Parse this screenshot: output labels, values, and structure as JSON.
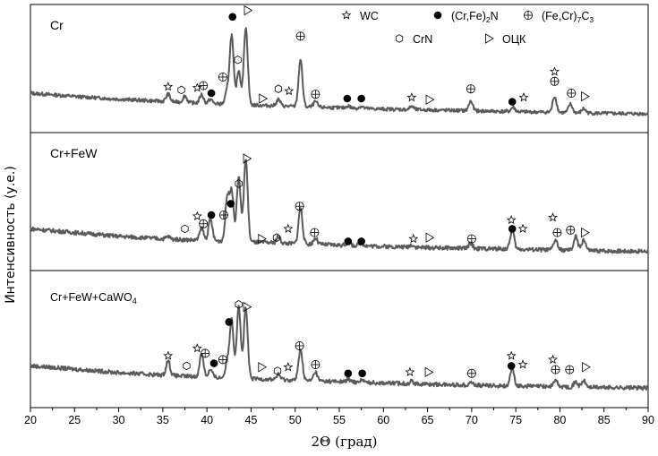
{
  "chart_data": {
    "type": "line",
    "xlabel": "2Θ (град)",
    "ylabel": "Интенсивность (у.е.)",
    "xlim": [
      20,
      90
    ],
    "xticks": [
      20,
      25,
      30,
      35,
      40,
      45,
      50,
      55,
      60,
      65,
      70,
      75,
      80,
      85,
      90
    ],
    "legend": {
      "placement": "top-right",
      "entries": [
        {
          "symbol": "star",
          "label": "WC"
        },
        {
          "symbol": "dot",
          "label": "(Cr,Fe)",
          "sub": "2",
          "suffix": "N"
        },
        {
          "symbol": "circle-plus",
          "label": "(Fe,Cr)",
          "sub": "7",
          "suffix": "C",
          "sub2": "3"
        },
        {
          "symbol": "hexagon",
          "label": "CrN"
        },
        {
          "symbol": "triangle",
          "label": "ОЦК"
        }
      ]
    },
    "panels": [
      {
        "name": "Cr",
        "background": [
          [
            20,
            1.0
          ],
          [
            25,
            0.85
          ],
          [
            30,
            0.72
          ],
          [
            35,
            0.62
          ],
          [
            40,
            0.52
          ],
          [
            45,
            0.45
          ],
          [
            50,
            0.38
          ],
          [
            55,
            0.32
          ],
          [
            60,
            0.26
          ],
          [
            65,
            0.22
          ],
          [
            70,
            0.18
          ],
          [
            75,
            0.14
          ],
          [
            80,
            0.1
          ],
          [
            85,
            0.06
          ],
          [
            90,
            0.04
          ]
        ],
        "peaks": [
          [
            35.6,
            0.35
          ],
          [
            37.5,
            0.3
          ],
          [
            39.4,
            0.4
          ],
          [
            40.4,
            0.2
          ],
          [
            42.3,
            0.6
          ],
          [
            42.8,
            3.2
          ],
          [
            43.6,
            1.6
          ],
          [
            44.4,
            3.6
          ],
          [
            48.1,
            0.3
          ],
          [
            50.6,
            2.2
          ],
          [
            52.3,
            0.25
          ],
          [
            56,
            0.1
          ],
          [
            57.5,
            0.1
          ],
          [
            63.2,
            0.15
          ],
          [
            69.9,
            0.45
          ],
          [
            74.7,
            0.2
          ],
          [
            79.4,
            0.75
          ],
          [
            81.2,
            0.4
          ],
          [
            82.7,
            0.2
          ]
        ],
        "markers": [
          {
            "s": "star",
            "x": 35.6,
            "y": 1.3
          },
          {
            "s": "hexagon",
            "x": 37.1,
            "y": 1.15
          },
          {
            "s": "star",
            "x": 38.9,
            "y": 1.25
          },
          {
            "s": "circle-plus",
            "x": 39.6,
            "y": 1.35
          },
          {
            "s": "dot",
            "x": 40.5,
            "y": 1.0
          },
          {
            "s": "circle-plus",
            "x": 41.8,
            "y": 1.75
          },
          {
            "s": "dot",
            "x": 42.9,
            "y": 4.55
          },
          {
            "s": "hexagon",
            "x": 43.5,
            "y": 2.55
          },
          {
            "s": "triangle",
            "x": 44.6,
            "y": 4.85
          },
          {
            "s": "triangle",
            "x": 46.3,
            "y": 0.75
          },
          {
            "s": "hexagon",
            "x": 48.1,
            "y": 1.2
          },
          {
            "s": "star",
            "x": 49.3,
            "y": 1.1
          },
          {
            "s": "circle-plus",
            "x": 50.6,
            "y": 3.65
          },
          {
            "s": "circle-plus",
            "x": 52.3,
            "y": 0.95
          },
          {
            "s": "dot",
            "x": 55.9,
            "y": 0.75
          },
          {
            "s": "dot",
            "x": 57.5,
            "y": 0.75
          },
          {
            "s": "star",
            "x": 63.2,
            "y": 0.8
          },
          {
            "s": "triangle",
            "x": 65.2,
            "y": 0.7
          },
          {
            "s": "circle-plus",
            "x": 69.9,
            "y": 1.2
          },
          {
            "s": "dot",
            "x": 74.6,
            "y": 0.6
          },
          {
            "s": "star",
            "x": 75.9,
            "y": 0.8
          },
          {
            "s": "star",
            "x": 79.4,
            "y": 2.0
          },
          {
            "s": "circle-plus",
            "x": 79.4,
            "y": 1.55
          },
          {
            "s": "circle-plus",
            "x": 81.3,
            "y": 1.0
          },
          {
            "s": "triangle",
            "x": 82.8,
            "y": 0.85
          }
        ]
      },
      {
        "name": "Cr+FeW",
        "background": [
          [
            20,
            0.95
          ],
          [
            25,
            0.8
          ],
          [
            30,
            0.65
          ],
          [
            35,
            0.55
          ],
          [
            40,
            0.48
          ],
          [
            45,
            0.42
          ],
          [
            50,
            0.36
          ],
          [
            55,
            0.3
          ],
          [
            60,
            0.25
          ],
          [
            65,
            0.2
          ],
          [
            70,
            0.17
          ],
          [
            75,
            0.14
          ],
          [
            80,
            0.1
          ],
          [
            85,
            0.07
          ],
          [
            90,
            0.05
          ]
        ],
        "peaks": [
          [
            35.6,
            0.1
          ],
          [
            39.4,
            0.5
          ],
          [
            40.4,
            0.85
          ],
          [
            42.3,
            1.7
          ],
          [
            42.8,
            2.0
          ],
          [
            43.6,
            2.6
          ],
          [
            44.4,
            3.3
          ],
          [
            48.1,
            0.25
          ],
          [
            50.6,
            1.45
          ],
          [
            52.3,
            0.25
          ],
          [
            56,
            0.12
          ],
          [
            57.5,
            0.12
          ],
          [
            63.2,
            0.1
          ],
          [
            69.9,
            0.2
          ],
          [
            74.6,
            0.75
          ],
          [
            79.5,
            0.4
          ],
          [
            81.8,
            0.55
          ],
          [
            82.7,
            0.45
          ]
        ],
        "markers": [
          {
            "s": "hexagon",
            "x": 37.5,
            "y": 0.95
          },
          {
            "s": "star",
            "x": 38.9,
            "y": 1.45
          },
          {
            "s": "circle-plus",
            "x": 39.6,
            "y": 1.15
          },
          {
            "s": "dot",
            "x": 40.5,
            "y": 1.5
          },
          {
            "s": "circle-plus",
            "x": 41.9,
            "y": 1.5
          },
          {
            "s": "dot",
            "x": 42.7,
            "y": 1.95
          },
          {
            "s": "hexagon",
            "x": 43.6,
            "y": 2.75
          },
          {
            "s": "triangle",
            "x": 44.5,
            "y": 3.75
          },
          {
            "s": "triangle",
            "x": 46.2,
            "y": 0.55
          },
          {
            "s": "hexagon",
            "x": 47.9,
            "y": 0.6
          },
          {
            "s": "star",
            "x": 49.2,
            "y": 0.95
          },
          {
            "s": "circle-plus",
            "x": 50.5,
            "y": 1.85
          },
          {
            "s": "circle-plus",
            "x": 52.2,
            "y": 0.8
          },
          {
            "s": "dot",
            "x": 56.0,
            "y": 0.45
          },
          {
            "s": "dot",
            "x": 57.5,
            "y": 0.45
          },
          {
            "s": "star",
            "x": 63.4,
            "y": 0.55
          },
          {
            "s": "triangle",
            "x": 65.2,
            "y": 0.6
          },
          {
            "s": "circle-plus",
            "x": 70.0,
            "y": 0.55
          },
          {
            "s": "star",
            "x": 74.5,
            "y": 1.3
          },
          {
            "s": "dot",
            "x": 74.6,
            "y": 0.95
          },
          {
            "s": "star",
            "x": 75.8,
            "y": 0.95
          },
          {
            "s": "star",
            "x": 79.2,
            "y": 1.4
          },
          {
            "s": "circle-plus",
            "x": 79.7,
            "y": 0.8
          },
          {
            "s": "circle-plus",
            "x": 81.2,
            "y": 0.9
          },
          {
            "s": "triangle",
            "x": 82.8,
            "y": 0.8
          }
        ]
      },
      {
        "name": "Cr+FeW+CaWO",
        "name_sub": "4",
        "background": [
          [
            20,
            0.95
          ],
          [
            25,
            0.82
          ],
          [
            30,
            0.68
          ],
          [
            35,
            0.58
          ],
          [
            40,
            0.5
          ],
          [
            45,
            0.44
          ],
          [
            50,
            0.38
          ],
          [
            55,
            0.32
          ],
          [
            60,
            0.27
          ],
          [
            65,
            0.22
          ],
          [
            70,
            0.18
          ],
          [
            75,
            0.15
          ],
          [
            80,
            0.12
          ],
          [
            85,
            0.09
          ],
          [
            90,
            0.07
          ]
        ],
        "peaks": [
          [
            35.6,
            0.6
          ],
          [
            39.4,
            0.95
          ],
          [
            40.4,
            0.3
          ],
          [
            42.3,
            0.6
          ],
          [
            42.8,
            2.3
          ],
          [
            43.6,
            2.9
          ],
          [
            44.4,
            2.8
          ],
          [
            48.1,
            0.2
          ],
          [
            50.6,
            1.25
          ],
          [
            52.3,
            0.35
          ],
          [
            56,
            0.1
          ],
          [
            57.5,
            0.1
          ],
          [
            63.2,
            0.1
          ],
          [
            69.9,
            0.12
          ],
          [
            74.6,
            0.65
          ],
          [
            79.5,
            0.25
          ],
          [
            81.8,
            0.2
          ],
          [
            82.7,
            0.25
          ]
        ],
        "markers": [
          {
            "s": "star",
            "x": 35.6,
            "y": 1.35
          },
          {
            "s": "hexagon",
            "x": 37.7,
            "y": 0.95
          },
          {
            "s": "star",
            "x": 38.9,
            "y": 1.65
          },
          {
            "s": "circle-plus",
            "x": 39.8,
            "y": 1.45
          },
          {
            "s": "dot",
            "x": 40.8,
            "y": 1.05
          },
          {
            "s": "circle-plus",
            "x": 41.8,
            "y": 1.2
          },
          {
            "s": "dot",
            "x": 42.5,
            "y": 2.7
          },
          {
            "s": "hexagon",
            "x": 43.6,
            "y": 3.4
          },
          {
            "s": "triangle",
            "x": 44.5,
            "y": 3.3
          },
          {
            "s": "triangle",
            "x": 46.2,
            "y": 0.9
          },
          {
            "s": "hexagon",
            "x": 48.0,
            "y": 0.75
          },
          {
            "s": "star",
            "x": 49.2,
            "y": 0.9
          },
          {
            "s": "circle-plus",
            "x": 50.5,
            "y": 1.75
          },
          {
            "s": "circle-plus",
            "x": 52.3,
            "y": 1.0
          },
          {
            "s": "dot",
            "x": 56.0,
            "y": 0.65
          },
          {
            "s": "dot",
            "x": 57.6,
            "y": 0.65
          },
          {
            "s": "star",
            "x": 63.0,
            "y": 0.7
          },
          {
            "s": "triangle",
            "x": 65.1,
            "y": 0.7
          },
          {
            "s": "circle-plus",
            "x": 70.0,
            "y": 0.65
          },
          {
            "s": "star",
            "x": 74.5,
            "y": 1.35
          },
          {
            "s": "dot",
            "x": 74.5,
            "y": 0.95
          },
          {
            "s": "star",
            "x": 75.8,
            "y": 1.0
          },
          {
            "s": "star",
            "x": 79.2,
            "y": 1.2
          },
          {
            "s": "circle-plus",
            "x": 79.5,
            "y": 0.8
          },
          {
            "s": "circle-plus",
            "x": 81.1,
            "y": 0.8
          },
          {
            "s": "triangle",
            "x": 82.9,
            "y": 0.9
          }
        ]
      }
    ]
  }
}
